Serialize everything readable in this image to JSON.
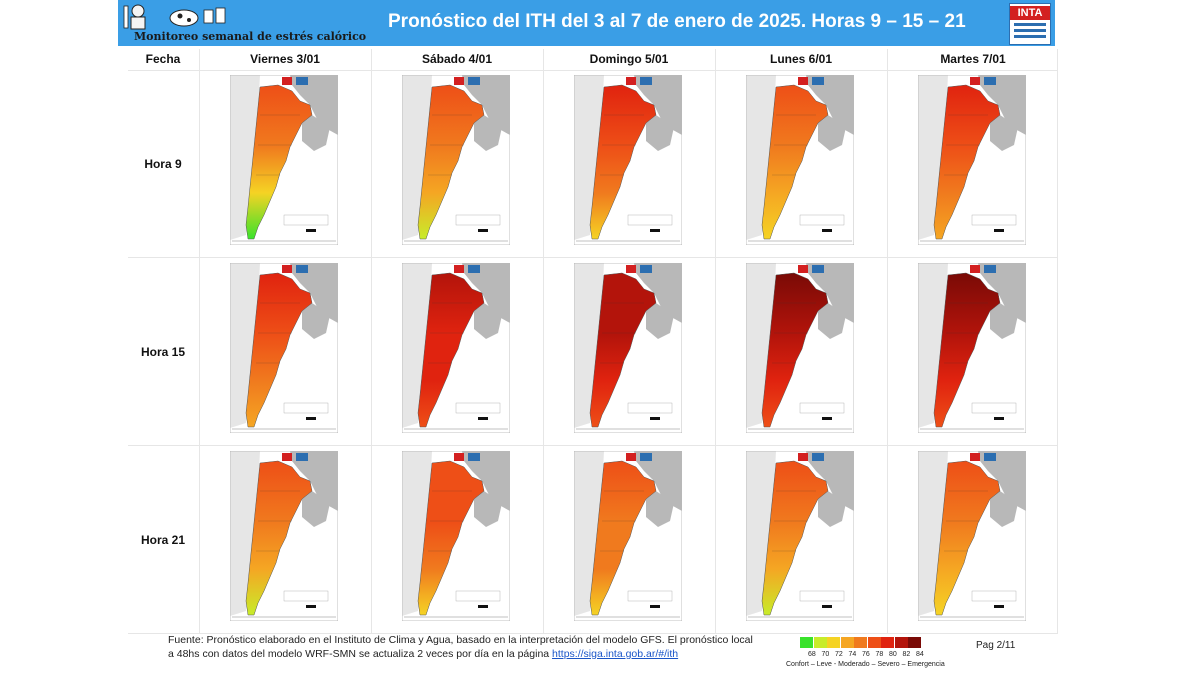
{
  "header": {
    "logo_text": "Monitoreo semanal de estrés calórico",
    "title": "Pronóstico del ITH del 3 al 7 de enero de 2025. Horas 9 – 15 – 21",
    "inta_logo": "INTA"
  },
  "table": {
    "row_header": "Fecha",
    "columns": [
      "Viernes 3/01",
      "Sábado 4/01",
      "Domingo 5/01",
      "Lunes 6/01",
      "Martes 7/01"
    ],
    "rows": [
      "Hora 9",
      "Hora 15",
      "Hora 21"
    ]
  },
  "footer": {
    "text": "Fuente: Pronóstico elaborado en el Instituto de Clima y Agua, basado en la interpretación del modelo GFS. El pronóstico local a 48hs con datos del modelo WRF-SMN se actualiza 2 veces por día en la página",
    "link": "https://siga.inta.gob.ar/#/ith",
    "page": "Pag 2/11"
  },
  "legend": {
    "values": [
      "68",
      "70",
      "72",
      "74",
      "76",
      "78",
      "80",
      "82",
      "84"
    ],
    "colors": [
      "#39e22b",
      "#c8ec2a",
      "#f5d324",
      "#f5a623",
      "#f07a1e",
      "#ee4f17",
      "#e0230f",
      "#b3140b",
      "#7a0a06"
    ],
    "categories": "Confort – Leve - Moderado – Severo – Emergencia"
  },
  "palette": {
    "banner": "#3a9ee6",
    "neighbor_land": "#b8b8b8",
    "sea": "#ffffff"
  }
}
